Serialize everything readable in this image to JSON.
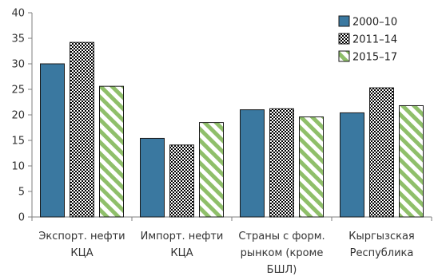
{
  "chart_data": {
    "type": "bar",
    "categories": [
      [
        "Экспорт. нефти",
        "КЦА"
      ],
      [
        "Импорт. нефти",
        "КЦА"
      ],
      [
        "Страны с форм.",
        "рынком (кроме",
        "БШЛ)"
      ],
      [
        "Кыргызская",
        "Республика"
      ]
    ],
    "series": [
      {
        "name": "2000–10",
        "values": [
          30.0,
          15.4,
          21.0,
          20.4
        ],
        "pattern": "solid",
        "color": "#3a78a0"
      },
      {
        "name": "2011–14",
        "values": [
          34.2,
          14.1,
          21.2,
          25.3
        ],
        "pattern": "checker",
        "color": "#000000"
      },
      {
        "name": "2015–17",
        "values": [
          25.6,
          18.5,
          19.6,
          21.8
        ],
        "pattern": "diagonal",
        "color": "#8fbf6a"
      }
    ],
    "ylim": [
      0,
      40
    ],
    "yticks": [
      0,
      5,
      10,
      15,
      20,
      25,
      30,
      35,
      40
    ],
    "legend_position": "top-right",
    "grid": false
  }
}
